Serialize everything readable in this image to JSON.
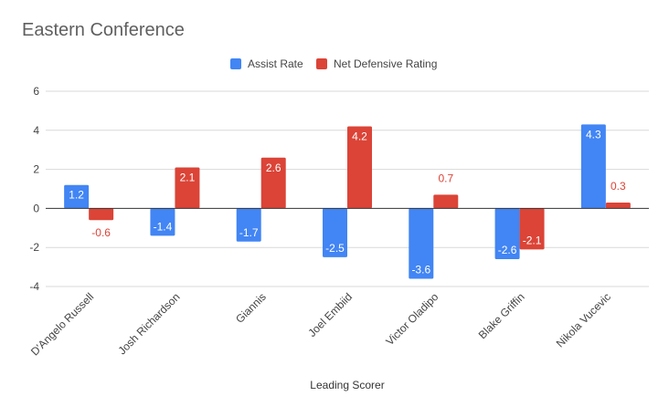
{
  "chart_data": {
    "type": "bar",
    "title": "Eastern Conference",
    "xlabel": "Leading Scorer",
    "ylabel": "",
    "categories": [
      "D'Angelo Russell",
      "Josh Richardson",
      "Giannis",
      "Joel Embiid",
      "Victor Oladipo",
      "Blake Griffin",
      "Nikola Vucevic"
    ],
    "series": [
      {
        "name": "Assist Rate",
        "color": "#4285f4",
        "values": [
          1.2,
          -1.4,
          -1.7,
          -2.5,
          -3.6,
          -2.6,
          4.3
        ]
      },
      {
        "name": "Net Defensive Rating",
        "color": "#db4437",
        "values": [
          -0.6,
          2.1,
          2.6,
          4.2,
          0.7,
          -2.1,
          0.3
        ]
      }
    ],
    "ylim": [
      -4,
      6
    ],
    "yticks": [
      -4,
      -2,
      0,
      2,
      4,
      6
    ],
    "grid": true,
    "legend_position": "top"
  }
}
